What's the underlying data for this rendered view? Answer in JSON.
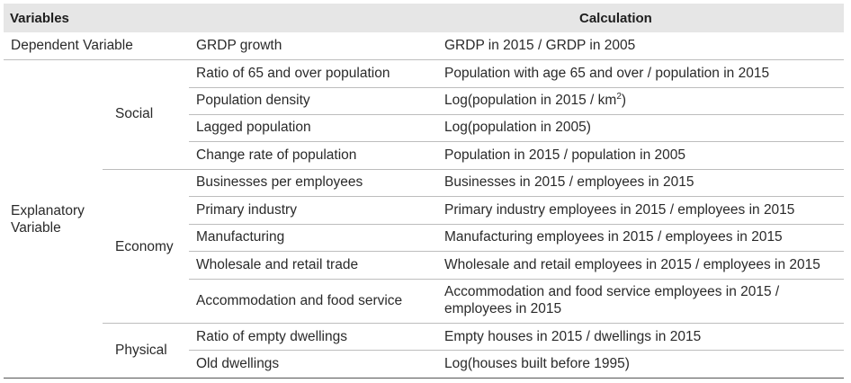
{
  "header": {
    "variables": "Variables",
    "calculation": "Calculation"
  },
  "dependent": {
    "label": "Dependent Variable",
    "variable": "GRDP growth",
    "calc": "GRDP in 2015 / GRDP in 2005"
  },
  "explanatory": {
    "label_line1": "Explanatory",
    "label_line2": "Variable",
    "social": {
      "label": "Social",
      "rows": [
        {
          "variable": "Ratio of 65 and over population",
          "calc": "Population with age 65 and over / population in 2015"
        },
        {
          "variable": "Population density",
          "calc_pre": "Log(population in 2015 / km",
          "calc_sup": "2",
          "calc_post": ")"
        },
        {
          "variable": "Lagged population",
          "calc": "Log(population in 2005)"
        },
        {
          "variable": "Change rate of population",
          "calc": "Population in 2015 / population in 2005"
        }
      ]
    },
    "economy": {
      "label": "Economy",
      "rows": [
        {
          "variable": "Businesses per employees",
          "calc": "Businesses in 2015 / employees in 2015"
        },
        {
          "variable": "Primary industry",
          "calc": "Primary industry employees in 2015 / employees in 2015"
        },
        {
          "variable": "Manufacturing",
          "calc": "Manufacturing employees in 2015 / employees in 2015"
        },
        {
          "variable": "Wholesale and retail trade",
          "calc": "Wholesale and retail employees in 2015 / employees in 2015"
        },
        {
          "variable": "Accommodation and food service",
          "calc_line1": "Accommodation and food service employees in 2015 /",
          "calc_line2": "employees in 2015"
        }
      ]
    },
    "physical": {
      "label": "Physical",
      "rows": [
        {
          "variable": "Ratio of empty dwellings",
          "calc": "Empty houses in 2015 / dwellings in 2015"
        },
        {
          "variable": "Old dwellings",
          "calc": "Log(houses built before 1995)"
        }
      ]
    }
  }
}
